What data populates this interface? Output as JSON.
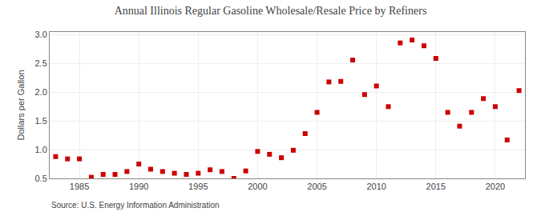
{
  "chart_data": {
    "type": "scatter",
    "title": "Annual Illinois Regular Gasoline Wholesale/Resale Price by Refiners",
    "ylabel": "Dollars per Gallon",
    "source": "Source: U.S. Energy Information Administration",
    "x": [
      1983,
      1984,
      1985,
      1986,
      1987,
      1988,
      1989,
      1990,
      1991,
      1992,
      1993,
      1994,
      1995,
      1996,
      1997,
      1998,
      1999,
      2000,
      2001,
      2002,
      2003,
      2004,
      2005,
      2006,
      2007,
      2008,
      2009,
      2010,
      2011,
      2012,
      2013,
      2014,
      2015,
      2016,
      2017,
      2018,
      2019,
      2020,
      2021,
      2022
    ],
    "values": [
      0.88,
      0.84,
      0.84,
      0.52,
      0.57,
      0.57,
      0.62,
      0.75,
      0.66,
      0.62,
      0.59,
      0.57,
      0.59,
      0.65,
      0.62,
      0.5,
      0.63,
      0.97,
      0.92,
      0.86,
      0.99,
      1.28,
      1.65,
      2.18,
      2.19,
      2.56,
      1.96,
      2.11,
      1.75,
      2.86,
      2.91,
      2.81,
      2.59,
      1.65,
      1.41,
      1.65,
      1.89,
      1.75,
      1.17,
      2.03
    ],
    "color": "#cc0000",
    "marker": "square",
    "xlim": [
      1982.5,
      2022.5
    ],
    "ylim": [
      0.5,
      3.05
    ],
    "xticks": [
      1985,
      1990,
      1995,
      2000,
      2005,
      2010,
      2015,
      2020
    ],
    "yticks": [
      0.5,
      {
        "value": 1.0,
        "label": "1.0"
      },
      1.5,
      {
        "value": 2.0,
        "label": "2.0"
      },
      2.5,
      {
        "value": 3.0,
        "label": "3.0"
      }
    ],
    "grid": true
  }
}
